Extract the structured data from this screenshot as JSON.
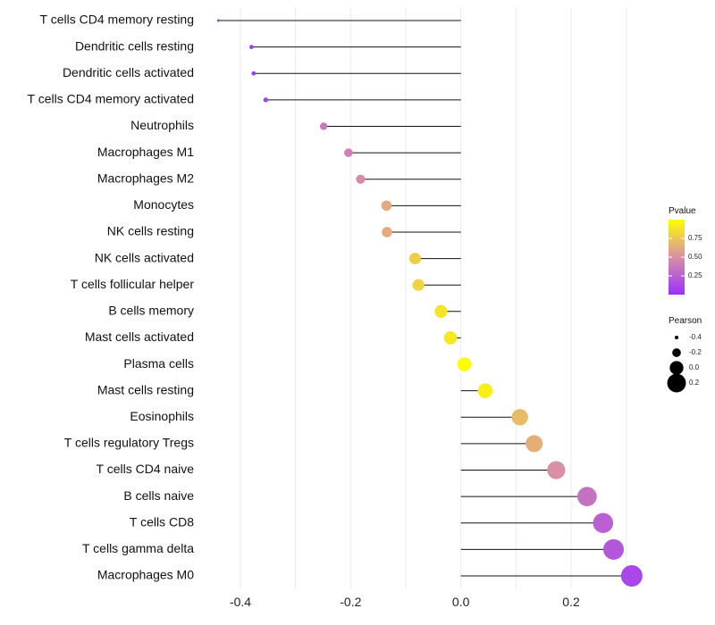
{
  "chart_data": {
    "type": "lollipop",
    "categories": [
      "T cells CD4 memory resting",
      "Dendritic cells resting",
      "Dendritic cells activated",
      "T cells CD4 memory activated",
      "Neutrophils",
      "Macrophages M1",
      "Macrophages M2",
      "Monocytes",
      "NK cells resting",
      "NK cells activated",
      "T cells follicular helper",
      "B cells memory",
      "Mast cells activated",
      "Plasma cells",
      "Mast cells resting",
      "Eosinophils",
      "T cells regulatory  Tregs",
      "T cells CD4 naive",
      "B cells naive",
      "T cells CD8",
      "T cells gamma delta",
      "Macrophages M0"
    ],
    "pearson": [
      -0.44,
      -0.38,
      -0.376,
      -0.354,
      -0.249,
      -0.204,
      -0.182,
      -0.135,
      -0.134,
      -0.083,
      -0.077,
      -0.036,
      -0.019,
      0.006,
      0.044,
      0.107,
      0.133,
      0.173,
      0.229,
      0.258,
      0.277,
      0.31
    ],
    "pvalue": [
      0.05,
      0.05,
      0.05,
      0.08,
      0.38,
      0.42,
      0.48,
      0.62,
      0.62,
      0.78,
      0.8,
      0.88,
      0.9,
      1.0,
      0.93,
      0.7,
      0.64,
      0.5,
      0.34,
      0.25,
      0.2,
      0.12
    ],
    "xlim": [
      -0.44,
      0.31
    ],
    "x_ticks": [
      -0.4,
      -0.2,
      0.0,
      0.2
    ],
    "x_tick_labels": [
      "-0.4",
      "-0.2",
      "0.0",
      "0.2"
    ],
    "baseline": 0.0,
    "legend_color": {
      "title": "Pvalue",
      "ticks": [
        0.25,
        0.5,
        0.75
      ],
      "tick_labels": [
        "0.25",
        "0.50",
        "0.75"
      ],
      "low_color": "#9b30ff",
      "mid_color": "#d98fa6",
      "high_color": "#ffff00",
      "range": [
        0.0,
        1.0
      ]
    },
    "legend_size": {
      "title": "Pearson",
      "values": [
        -0.4,
        -0.2,
        0.0,
        0.2
      ],
      "labels": [
        "-0.4",
        "-0.2",
        "0.0",
        "0.2"
      ]
    },
    "colors": {
      "stem": "#111111",
      "grid": "#ebebeb"
    }
  }
}
